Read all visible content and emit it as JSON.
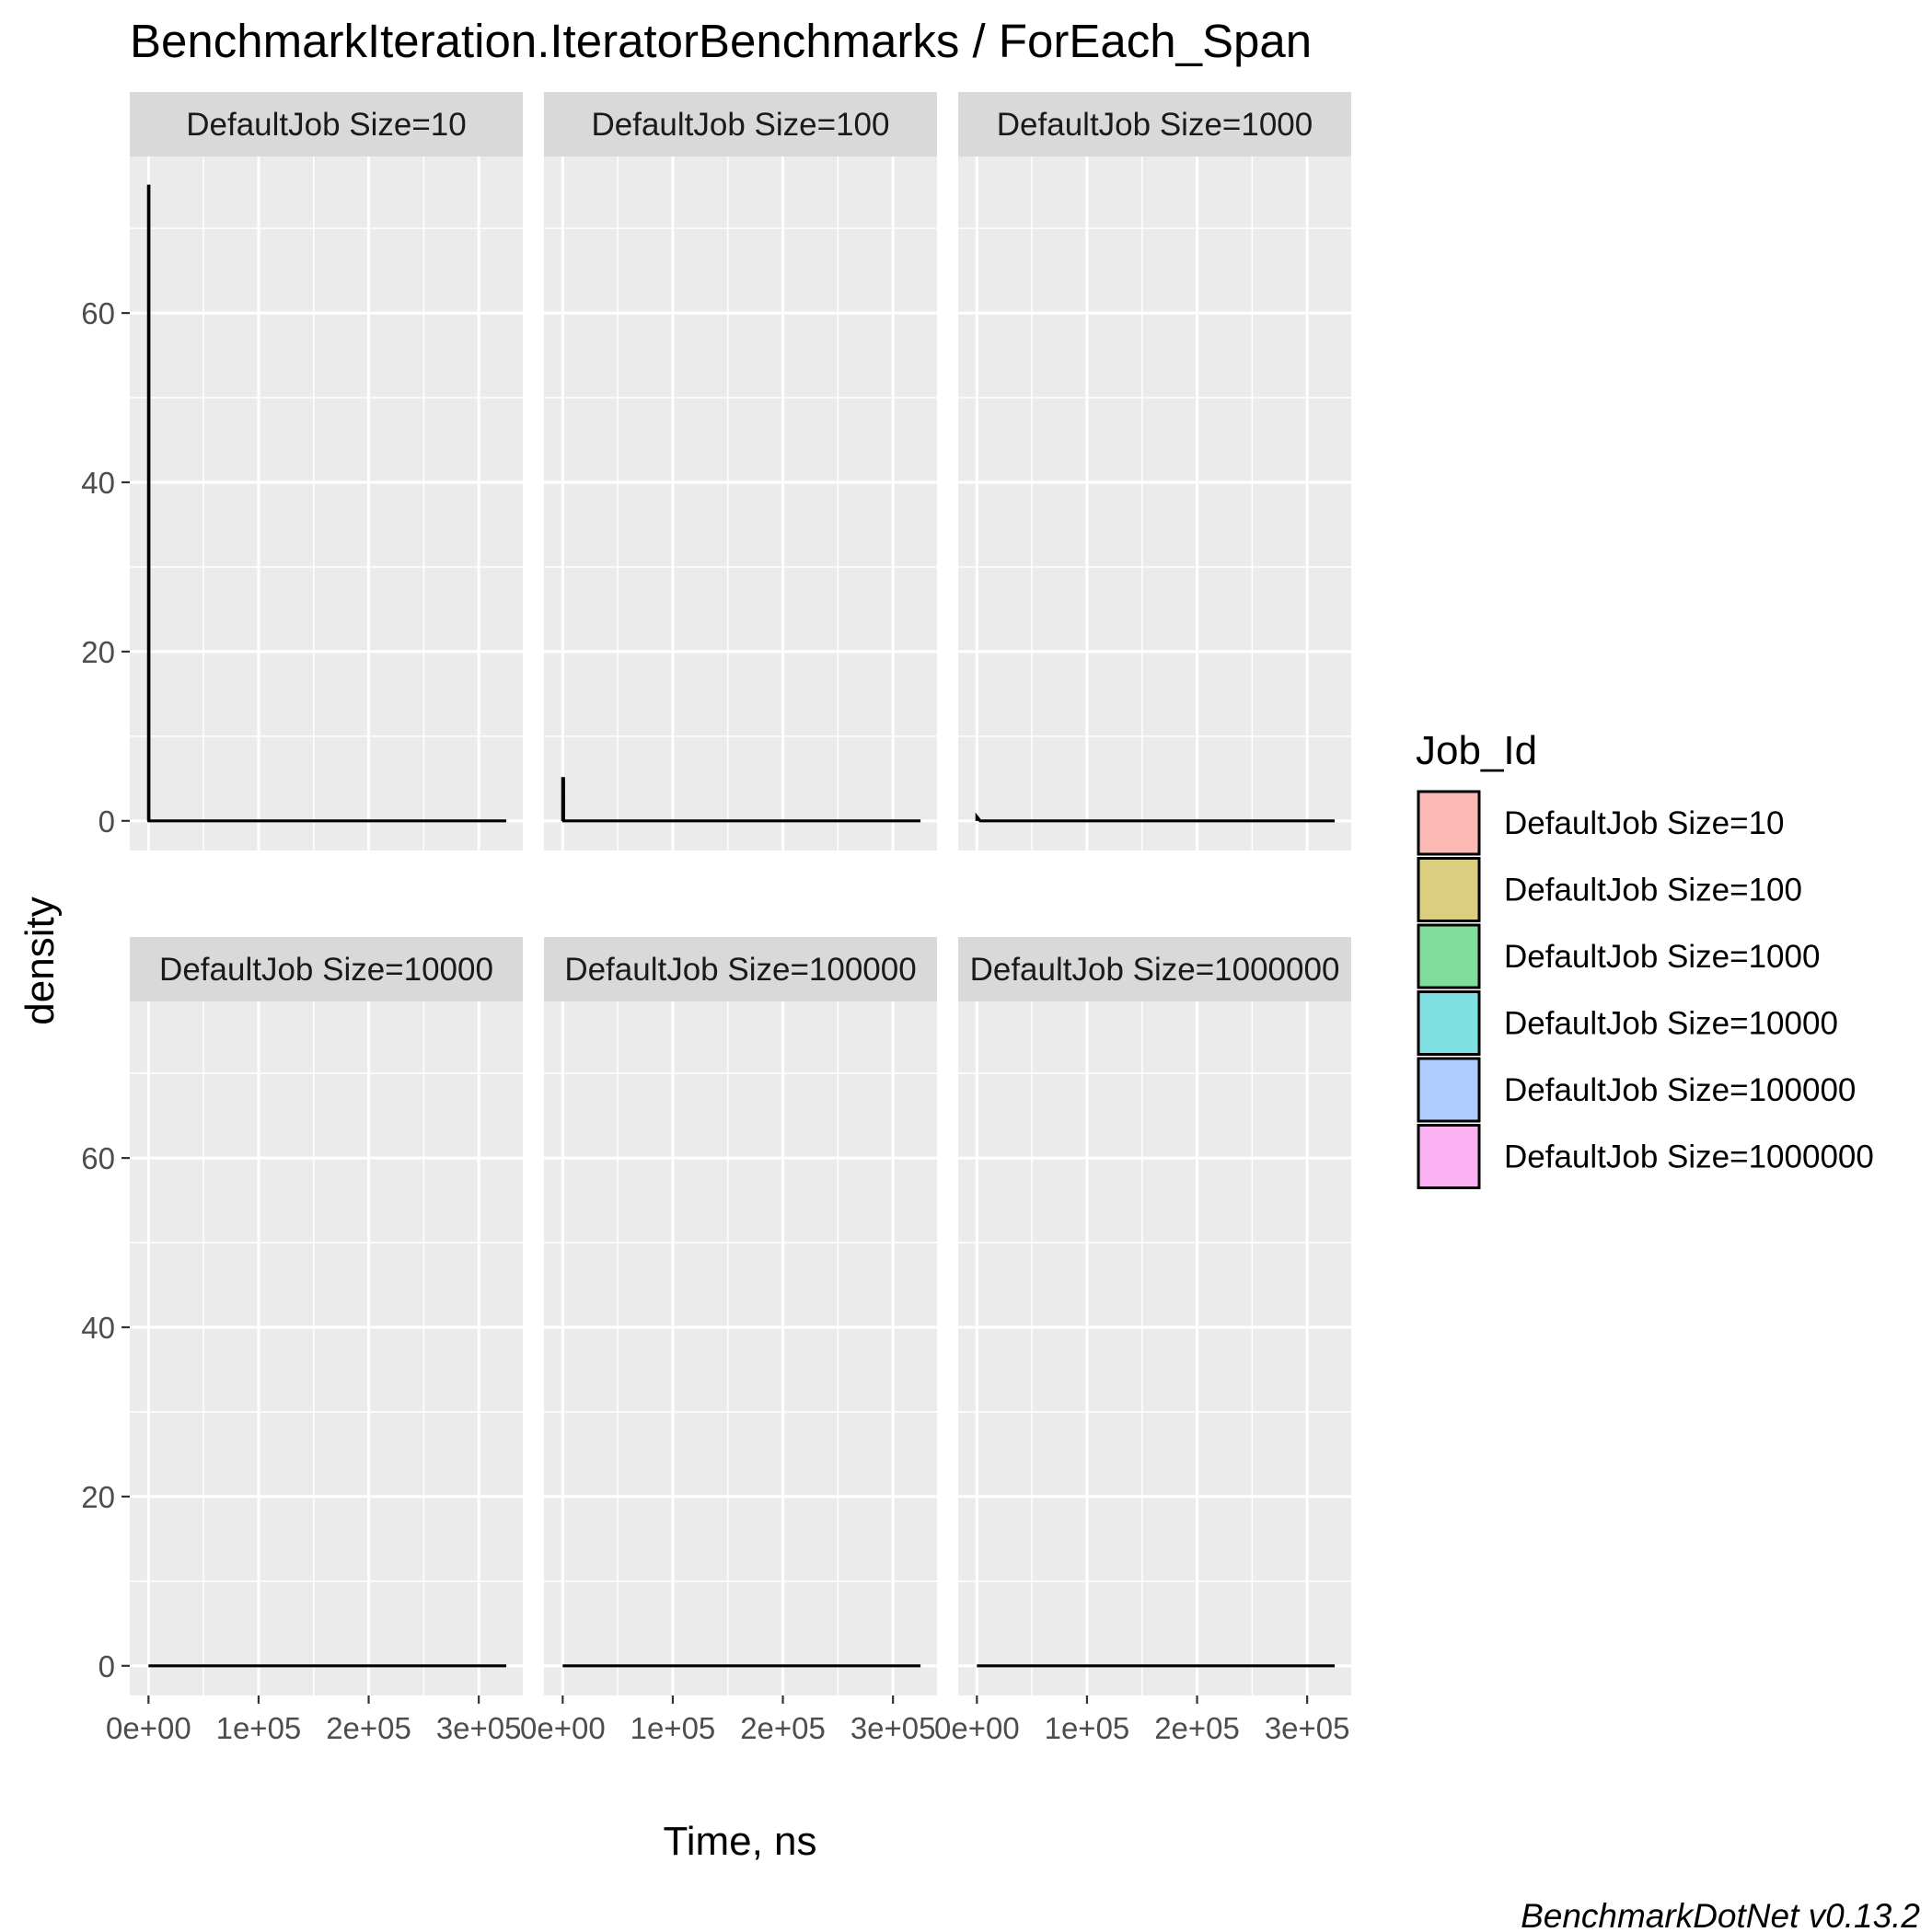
{
  "chart_data": {
    "type": "density",
    "title": "BenchmarkIteration.IteratorBenchmarks / ForEach_Span",
    "xlabel": "Time, ns",
    "ylabel": "density",
    "caption": "BenchmarkDotNet v0.13.2",
    "xlim": [
      -17000,
      340000
    ],
    "ylim": [
      -3.5,
      78.5
    ],
    "x_ticks": [
      0,
      100000,
      200000,
      300000
    ],
    "x_tick_labels": [
      "0e+00",
      "1e+05",
      "2e+05",
      "3e+05"
    ],
    "y_ticks": [
      0,
      20,
      40,
      60
    ],
    "y_tick_labels": [
      "0",
      "20",
      "40",
      "60"
    ],
    "grid": true,
    "legend": {
      "title": "Job_Id",
      "position": "right",
      "entries": [
        {
          "label": "DefaultJob Size=10",
          "color": "#F8766D"
        },
        {
          "label": "DefaultJob Size=100",
          "color": "#B79F00"
        },
        {
          "label": "DefaultJob Size=1000",
          "color": "#00BA38"
        },
        {
          "label": "DefaultJob Size=10000",
          "color": "#00BFC4"
        },
        {
          "label": "DefaultJob Size=100000",
          "color": "#619CFF"
        },
        {
          "label": "DefaultJob Size=1000000",
          "color": "#F564E3"
        }
      ]
    },
    "panels": [
      {
        "label": "DefaultJob Size=10",
        "points": [
          [
            0,
            0
          ],
          [
            0,
            75
          ],
          [
            400,
            75
          ],
          [
            400,
            0
          ],
          [
            325000,
            0
          ]
        ]
      },
      {
        "label": "DefaultJob Size=100",
        "points": [
          [
            0,
            0
          ],
          [
            0,
            5
          ],
          [
            800,
            5
          ],
          [
            900,
            0
          ],
          [
            325000,
            0
          ]
        ]
      },
      {
        "label": "DefaultJob Size=1000",
        "points": [
          [
            0,
            0
          ],
          [
            0,
            0.5
          ],
          [
            3000,
            0
          ],
          [
            325000,
            0
          ]
        ]
      },
      {
        "label": "DefaultJob Size=10000",
        "points": [
          [
            0,
            0
          ],
          [
            325000,
            0
          ]
        ]
      },
      {
        "label": "DefaultJob Size=100000",
        "points": [
          [
            0,
            0
          ],
          [
            325000,
            0
          ]
        ]
      },
      {
        "label": "DefaultJob Size=1000000",
        "points": [
          [
            0,
            0
          ],
          [
            325000,
            0
          ]
        ]
      }
    ]
  }
}
